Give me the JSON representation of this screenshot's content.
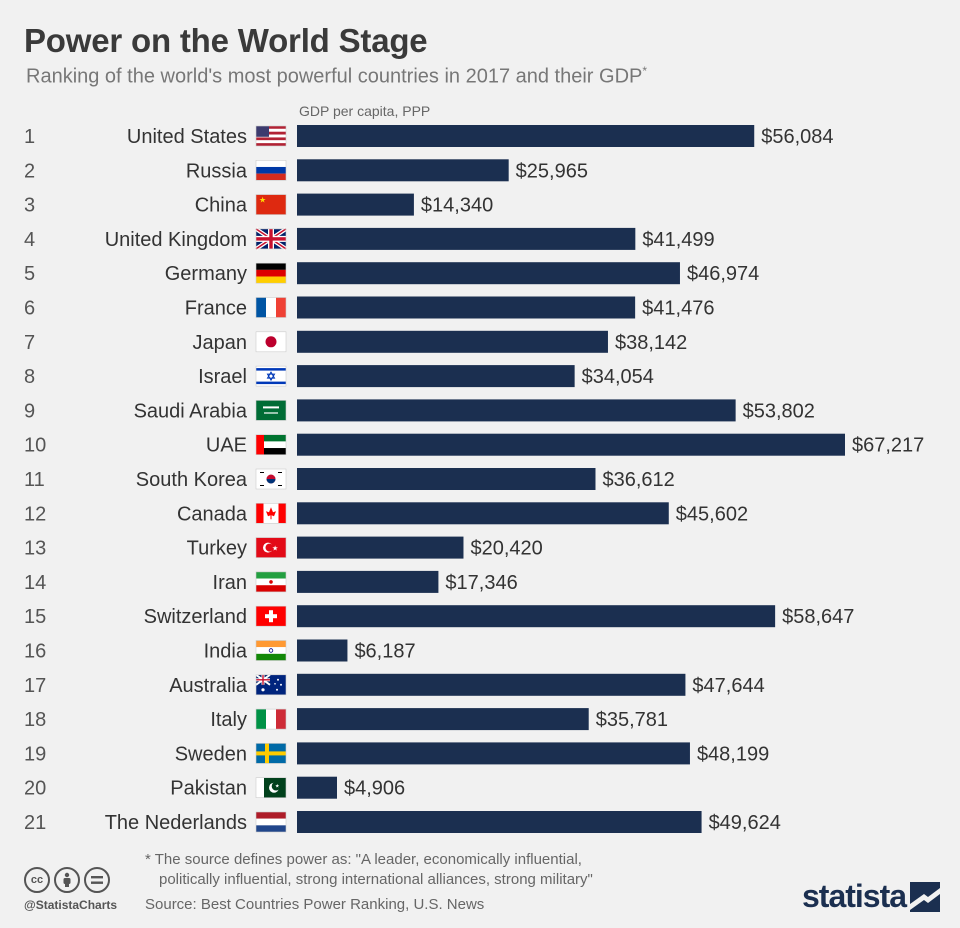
{
  "title": "Power on the World Stage",
  "subtitle": "Ranking of the world's most powerful countries in 2017 and their GDP",
  "subtitle_mark": "*",
  "axis_label": "GDP per capita, PPP",
  "footnote_line1": "* The source defines power as: \"A leader, economically influential,",
  "footnote_line2": "politically influential, strong international alliances, strong military\"",
  "source": "Source: Best Countries Power Ranking, U.S. News",
  "handle": "@StatistaCharts",
  "logo": "statista",
  "colors": {
    "bar": "#1b2f50",
    "background": "#f1f1f1"
  },
  "chart_data": {
    "type": "bar",
    "orientation": "horizontal",
    "title": "Power on the World Stage",
    "xlabel": "GDP per capita, PPP",
    "xlim": [
      0,
      67217
    ],
    "value_prefix": "$",
    "rows": [
      {
        "rank": "1",
        "country": "United States",
        "flag": "flag-us",
        "value": 56084,
        "label": "$56,084"
      },
      {
        "rank": "2",
        "country": "Russia",
        "flag": "flag-ru",
        "value": 25965,
        "label": "$25,965"
      },
      {
        "rank": "3",
        "country": "China",
        "flag": "flag-cn",
        "value": 14340,
        "label": "$14,340"
      },
      {
        "rank": "4",
        "country": "United Kingdom",
        "flag": "flag-gb",
        "value": 41499,
        "label": "$41,499"
      },
      {
        "rank": "5",
        "country": "Germany",
        "flag": "flag-de",
        "value": 46974,
        "label": "$46,974"
      },
      {
        "rank": "6",
        "country": "France",
        "flag": "flag-fr",
        "value": 41476,
        "label": "$41,476"
      },
      {
        "rank": "7",
        "country": "Japan",
        "flag": "flag-jp",
        "value": 38142,
        "label": "$38,142"
      },
      {
        "rank": "8",
        "country": "Israel",
        "flag": "flag-il",
        "value": 34054,
        "label": "$34,054"
      },
      {
        "rank": "9",
        "country": "Saudi Arabia",
        "flag": "flag-sa",
        "value": 53802,
        "label": "$53,802"
      },
      {
        "rank": "10",
        "country": "UAE",
        "flag": "flag-ae",
        "value": 67217,
        "label": "$67,217"
      },
      {
        "rank": "11",
        "country": "South Korea",
        "flag": "flag-kr",
        "value": 36612,
        "label": "$36,612"
      },
      {
        "rank": "12",
        "country": "Canada",
        "flag": "flag-ca",
        "value": 45602,
        "label": "$45,602"
      },
      {
        "rank": "13",
        "country": "Turkey",
        "flag": "flag-tr",
        "value": 20420,
        "label": "$20,420"
      },
      {
        "rank": "14",
        "country": "Iran",
        "flag": "flag-ir",
        "value": 17346,
        "label": "$17,346"
      },
      {
        "rank": "15",
        "country": "Switzerland",
        "flag": "flag-ch",
        "value": 58647,
        "label": "$58,647"
      },
      {
        "rank": "16",
        "country": "India",
        "flag": "flag-in",
        "value": 6187,
        "label": "$6,187"
      },
      {
        "rank": "17",
        "country": "Australia",
        "flag": "flag-au",
        "value": 47644,
        "label": "$47,644"
      },
      {
        "rank": "18",
        "country": "Italy",
        "flag": "flag-it",
        "value": 35781,
        "label": "$35,781"
      },
      {
        "rank": "19",
        "country": "Sweden",
        "flag": "flag-se",
        "value": 48199,
        "label": "$48,199"
      },
      {
        "rank": "20",
        "country": "Pakistan",
        "flag": "flag-pk",
        "value": 4906,
        "label": "$4,906"
      },
      {
        "rank": "21",
        "country": "The Nederlands",
        "flag": "flag-nl",
        "value": 49624,
        "label": "$49,624"
      }
    ]
  }
}
